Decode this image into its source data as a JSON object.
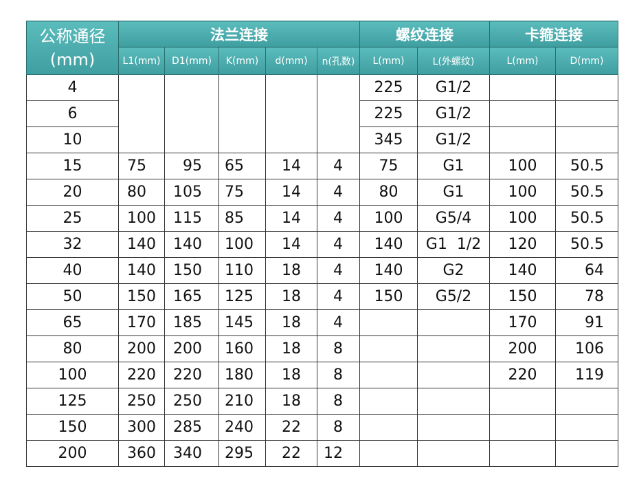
{
  "header": {
    "first_column": [
      "公称通径",
      "(mm)"
    ],
    "groups": [
      "法兰连接",
      "螺纹连接",
      "卡箍连接"
    ],
    "subheaders": [
      "L1(mm)",
      "D1(mm)",
      "K(mm)",
      "d(mm)",
      "n(孔数)",
      "L(mm)",
      "L(外螺纹)",
      "L(mm)",
      "D(mm)"
    ]
  },
  "table": {
    "rows": [
      [
        4,
        null,
        null,
        null,
        null,
        null,
        225,
        "G1/2",
        null,
        null
      ],
      [
        6,
        null,
        null,
        null,
        null,
        null,
        225,
        "G1/2",
        null,
        null
      ],
      [
        10,
        null,
        null,
        null,
        null,
        null,
        345,
        "G1/2",
        null,
        null
      ],
      [
        15,
        75,
        95,
        65,
        14,
        4,
        75,
        "G1",
        100,
        50.5
      ],
      [
        20,
        80,
        105,
        75,
        14,
        4,
        80,
        "G1",
        100,
        50.5
      ],
      [
        25,
        100,
        115,
        85,
        14,
        4,
        100,
        "G5/4",
        100,
        50.5
      ],
      [
        32,
        140,
        140,
        100,
        14,
        4,
        140,
        "G1  1/2",
        120,
        50.5
      ],
      [
        40,
        140,
        150,
        110,
        18,
        4,
        140,
        "G2",
        140,
        64
      ],
      [
        50,
        150,
        165,
        125,
        18,
        4,
        150,
        "G5/2",
        150,
        78
      ],
      [
        65,
        170,
        185,
        145,
        18,
        4,
        null,
        null,
        170,
        91
      ],
      [
        80,
        200,
        200,
        160,
        18,
        8,
        null,
        null,
        200,
        106
      ],
      [
        100,
        220,
        220,
        180,
        18,
        8,
        null,
        null,
        220,
        119
      ],
      [
        125,
        250,
        250,
        210,
        18,
        8,
        null,
        null,
        null,
        null
      ],
      [
        150,
        300,
        285,
        240,
        22,
        8,
        null,
        null,
        null,
        null
      ],
      [
        200,
        360,
        340,
        295,
        22,
        12,
        null,
        null,
        null,
        null
      ]
    ]
  }
}
